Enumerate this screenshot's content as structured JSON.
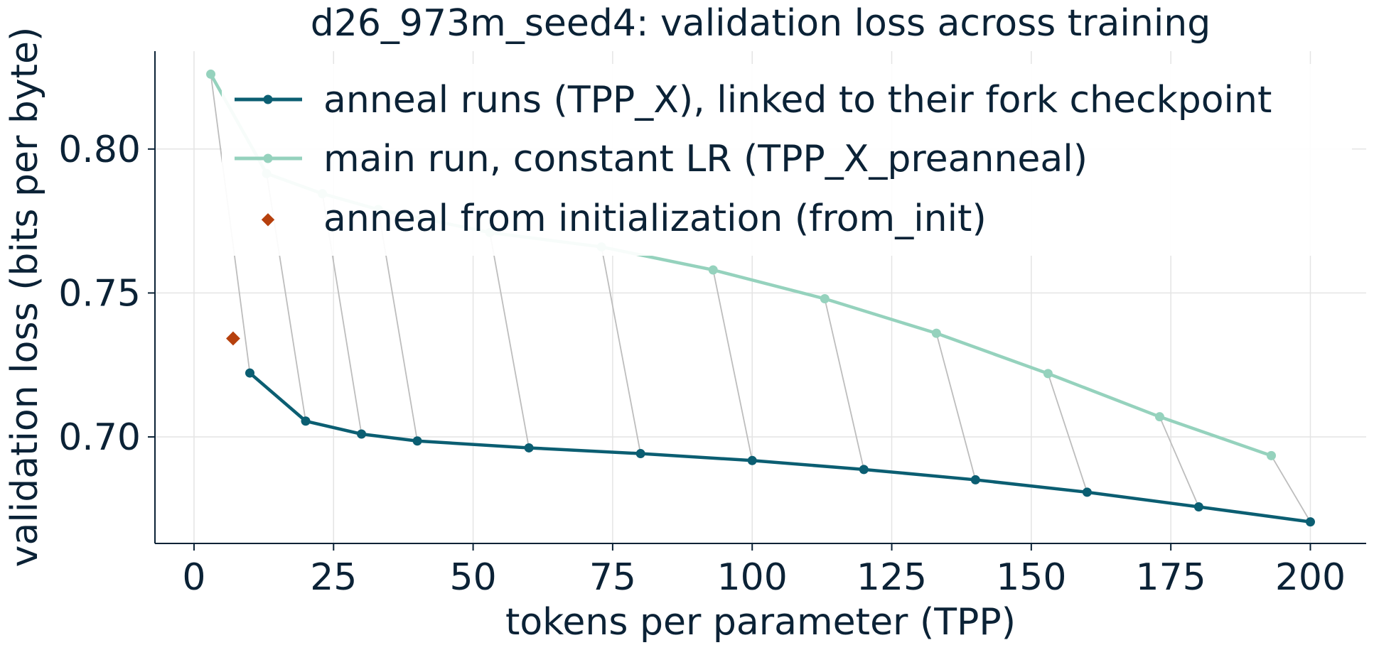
{
  "chart_data": {
    "type": "line",
    "title": "d26_973m_seed4: validation loss across training",
    "xlabel": "tokens per parameter (TPP)",
    "ylabel": "validation loss (bits per byte)",
    "xlim": [
      -7,
      210
    ],
    "ylim": [
      0.663,
      0.834
    ],
    "xticks": [
      0,
      25,
      50,
      75,
      100,
      125,
      150,
      175,
      200
    ],
    "xtick_labels": [
      "0",
      "25",
      "50",
      "75",
      "100",
      "125",
      "150",
      "175",
      "200"
    ],
    "yticks": [
      0.7,
      0.75,
      0.8
    ],
    "ytick_labels": [
      "0.70",
      "0.75",
      "0.80"
    ],
    "grid": true,
    "legend_position": "top-left",
    "colors": {
      "anneal": "#0b5e72",
      "main": "#95d2bd",
      "from_init": "#b6400d",
      "link": "#bdbdbd",
      "text": "#0b2236",
      "grid": "#e4e4e4"
    },
    "series": [
      {
        "key": "anneal",
        "name": "anneal runs (TPP_X), linked to their fork checkpoint",
        "x": [
          10,
          20,
          30,
          40,
          60,
          80,
          100,
          120,
          140,
          160,
          180,
          200
        ],
        "y": [
          0.7222,
          0.7055,
          0.701,
          0.6986,
          0.6962,
          0.6942,
          0.6918,
          0.6887,
          0.6851,
          0.6808,
          0.6757,
          0.6705
        ]
      },
      {
        "key": "main",
        "name": "main run, constant LR (TPP_X_preanneal)",
        "x": [
          3,
          13,
          23,
          33,
          53,
          73,
          93,
          113,
          133,
          153,
          173,
          193
        ],
        "y": [
          0.826,
          0.7915,
          0.7845,
          0.779,
          0.771,
          0.766,
          0.758,
          0.748,
          0.736,
          0.722,
          0.707,
          0.6935
        ]
      },
      {
        "key": "from_init",
        "name": "anneal from initialization (from_init)",
        "x": [
          7
        ],
        "y": [
          0.7342
        ]
      }
    ],
    "links": [
      [
        0,
        0
      ],
      [
        1,
        1
      ],
      [
        2,
        2
      ],
      [
        3,
        3
      ],
      [
        4,
        4
      ],
      [
        5,
        5
      ],
      [
        6,
        6
      ],
      [
        7,
        7
      ],
      [
        8,
        8
      ],
      [
        9,
        9
      ],
      [
        10,
        10
      ],
      [
        11,
        11
      ]
    ]
  }
}
